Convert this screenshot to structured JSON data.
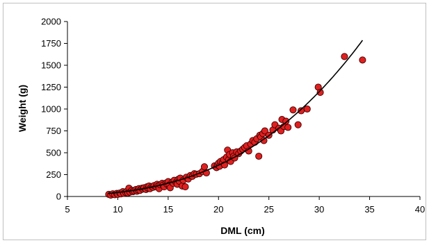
{
  "chart_data": {
    "type": "scatter",
    "title": "",
    "xlabel": "DML (cm)",
    "ylabel": "Weight (g)",
    "xlim": [
      5,
      40
    ],
    "ylim": [
      0,
      2000
    ],
    "x_ticks": [
      5,
      10,
      15,
      20,
      25,
      30,
      35,
      40
    ],
    "y_ticks": [
      0,
      250,
      500,
      750,
      1000,
      1250,
      1500,
      1750,
      2000
    ],
    "grid": false,
    "legend": "none",
    "point_color": "#e02020",
    "point_edge_color": "#400000",
    "trend_color": "#000000",
    "trendline": {
      "type": "power",
      "a": 0.0475,
      "b": 2.98,
      "x_range": [
        9,
        34.3
      ]
    },
    "series": [
      {
        "points": [
          [
            9.1,
            25
          ],
          [
            9.3,
            15
          ],
          [
            9.5,
            30
          ],
          [
            9.7,
            20
          ],
          [
            9.9,
            35
          ],
          [
            10.0,
            25
          ],
          [
            10.2,
            40
          ],
          [
            10.3,
            30
          ],
          [
            10.5,
            55
          ],
          [
            10.6,
            35
          ],
          [
            10.8,
            45
          ],
          [
            10.9,
            60
          ],
          [
            11.0,
            40
          ],
          [
            11.1,
            95
          ],
          [
            11.2,
            50
          ],
          [
            11.4,
            70
          ],
          [
            11.5,
            55
          ],
          [
            11.6,
            65
          ],
          [
            11.8,
            80
          ],
          [
            11.9,
            60
          ],
          [
            12.0,
            75
          ],
          [
            12.1,
            90
          ],
          [
            12.2,
            70
          ],
          [
            12.4,
            95
          ],
          [
            12.5,
            85
          ],
          [
            12.6,
            100
          ],
          [
            12.8,
            80
          ],
          [
            12.9,
            110
          ],
          [
            13.0,
            95
          ],
          [
            13.1,
            120
          ],
          [
            13.2,
            90
          ],
          [
            13.4,
            115
          ],
          [
            13.5,
            105
          ],
          [
            13.6,
            125
          ],
          [
            13.8,
            110
          ],
          [
            13.9,
            140
          ],
          [
            14.0,
            120
          ],
          [
            14.1,
            90
          ],
          [
            14.2,
            135
          ],
          [
            14.4,
            150
          ],
          [
            14.5,
            130
          ],
          [
            14.6,
            110
          ],
          [
            14.8,
            155
          ],
          [
            14.9,
            140
          ],
          [
            15.0,
            170
          ],
          [
            15.1,
            130
          ],
          [
            15.2,
            100
          ],
          [
            15.4,
            165
          ],
          [
            15.5,
            150
          ],
          [
            15.6,
            185
          ],
          [
            15.8,
            160
          ],
          [
            15.9,
            140
          ],
          [
            16.0,
            195
          ],
          [
            16.1,
            175
          ],
          [
            16.2,
            210
          ],
          [
            16.4,
            120
          ],
          [
            16.5,
            185
          ],
          [
            16.7,
            110
          ],
          [
            16.8,
            220
          ],
          [
            17.0,
            200
          ],
          [
            17.2,
            240
          ],
          [
            17.4,
            230
          ],
          [
            17.6,
            260
          ],
          [
            17.8,
            255
          ],
          [
            18.1,
            260
          ],
          [
            18.4,
            285
          ],
          [
            18.6,
            340
          ],
          [
            18.8,
            270
          ],
          [
            19.6,
            350
          ],
          [
            19.8,
            330
          ],
          [
            19.9,
            360
          ],
          [
            20.0,
            380
          ],
          [
            20.1,
            345
          ],
          [
            20.2,
            400
          ],
          [
            20.4,
            390
          ],
          [
            20.5,
            420
          ],
          [
            20.6,
            360
          ],
          [
            20.8,
            450
          ],
          [
            20.9,
            530
          ],
          [
            21.0,
            420
          ],
          [
            21.1,
            480
          ],
          [
            21.2,
            400
          ],
          [
            21.4,
            500
          ],
          [
            21.5,
            460
          ],
          [
            21.6,
            440
          ],
          [
            21.8,
            510
          ],
          [
            22.0,
            490
          ],
          [
            22.2,
            520
          ],
          [
            22.4,
            540
          ],
          [
            22.6,
            560
          ],
          [
            22.8,
            580
          ],
          [
            23.0,
            520
          ],
          [
            23.2,
            600
          ],
          [
            23.4,
            640
          ],
          [
            23.6,
            620
          ],
          [
            23.8,
            660
          ],
          [
            24.0,
            460
          ],
          [
            24.1,
            700
          ],
          [
            24.2,
            680
          ],
          [
            24.4,
            720
          ],
          [
            24.5,
            640
          ],
          [
            24.6,
            750
          ],
          [
            25.0,
            700
          ],
          [
            25.4,
            760
          ],
          [
            25.6,
            820
          ],
          [
            26.0,
            780
          ],
          [
            26.2,
            750
          ],
          [
            26.3,
            880
          ],
          [
            26.5,
            800
          ],
          [
            26.7,
            860
          ],
          [
            26.9,
            790
          ],
          [
            27.4,
            990
          ],
          [
            27.9,
            820
          ],
          [
            28.2,
            980
          ],
          [
            28.8,
            1000
          ],
          [
            29.9,
            1250
          ],
          [
            30.1,
            1190
          ],
          [
            32.5,
            1600
          ],
          [
            34.3,
            1560
          ]
        ]
      }
    ]
  }
}
